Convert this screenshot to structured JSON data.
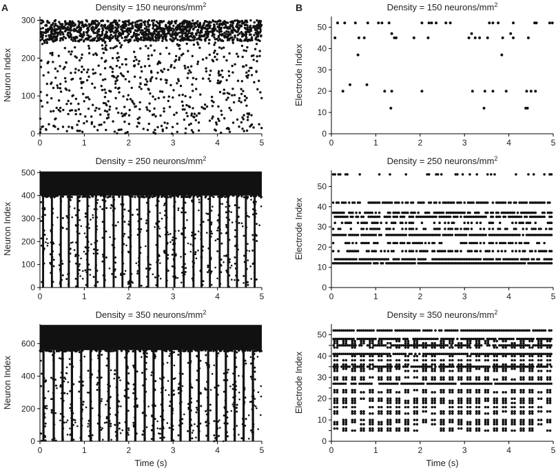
{
  "figure": {
    "panel_labels": [
      "A",
      "B"
    ],
    "background": "#ffffff",
    "dot_color": "#111111"
  },
  "chart_data": [
    {
      "type": "scatter",
      "panel": "A",
      "title": "Density = 150 neurons/mm",
      "title_sup": "2",
      "xlabel": "",
      "ylabel": "Neuron Index",
      "xlim": [
        0,
        5
      ],
      "ylim": [
        0,
        310
      ],
      "xticks": [
        0,
        1,
        2,
        3,
        4,
        5
      ],
      "yticks": [
        0,
        100,
        200,
        300
      ],
      "grid": false,
      "raster": {
        "total_units": 300,
        "dense_band": [
          245,
          300
        ],
        "dense_events": 1300,
        "sparse_events": 600,
        "synchrony": 0
      }
    },
    {
      "type": "scatter",
      "panel": "A",
      "title": "Density = 250 neurons/mm",
      "title_sup": "2",
      "xlabel": "",
      "ylabel": "Neuron Index",
      "xlim": [
        0,
        5
      ],
      "ylim": [
        0,
        510
      ],
      "xticks": [
        0,
        1,
        2,
        3,
        4,
        5
      ],
      "yticks": [
        0,
        100,
        200,
        300,
        400,
        500
      ],
      "grid": false,
      "raster": {
        "total_units": 500,
        "dense_band": [
          400,
          505
        ],
        "burst_times": [
          0.07,
          0.27,
          0.47,
          0.65,
          0.85,
          1.07,
          1.26,
          1.45,
          1.66,
          1.86,
          2.04,
          2.24,
          2.44,
          2.65,
          2.85,
          3.03,
          3.24,
          3.46,
          3.64,
          3.83,
          4.05,
          4.24,
          4.44,
          4.64,
          4.84
        ],
        "burst_width": 0.045
      }
    },
    {
      "type": "scatter",
      "panel": "A",
      "title": "Density = 350 neurons/mm",
      "title_sup": "2",
      "xlabel": "Time (s)",
      "ylabel": "Neuron Index",
      "xlim": [
        0,
        5
      ],
      "ylim": [
        0,
        720
      ],
      "xticks": [
        0,
        1,
        2,
        3,
        4,
        5
      ],
      "yticks": [
        0,
        200,
        400,
        600
      ],
      "grid": false,
      "raster": {
        "total_units": 700,
        "dense_band": [
          560,
          715
        ],
        "burst_times": [
          0.08,
          0.31,
          0.51,
          0.72,
          0.93,
          1.14,
          1.34,
          1.55,
          1.74,
          1.95,
          2.15,
          2.36,
          2.56,
          2.76,
          2.97,
          3.17,
          3.38,
          3.58,
          3.79,
          3.98,
          4.19,
          4.39,
          4.59,
          4.8
        ],
        "burst_width": 0.05
      }
    },
    {
      "type": "scatter",
      "panel": "B",
      "title": "Density = 150 neurons/mm",
      "title_sup": "2",
      "xlabel": "",
      "ylabel": "Electrode Index",
      "xlim": [
        0,
        5
      ],
      "ylim": [
        0,
        55
      ],
      "xticks": [
        0,
        1,
        2,
        3,
        4,
        5
      ],
      "yticks": [
        0,
        10,
        20,
        30,
        40,
        50
      ],
      "grid": false,
      "points": [
        [
          0.08,
          45
        ],
        [
          0.14,
          52
        ],
        [
          0.26,
          20
        ],
        [
          0.3,
          52
        ],
        [
          0.42,
          23
        ],
        [
          0.54,
          52
        ],
        [
          0.6,
          37
        ],
        [
          0.62,
          45
        ],
        [
          0.74,
          45
        ],
        [
          0.8,
          23
        ],
        [
          0.82,
          52
        ],
        [
          1.06,
          52
        ],
        [
          1.14,
          52
        ],
        [
          1.2,
          20
        ],
        [
          1.3,
          52
        ],
        [
          1.34,
          12
        ],
        [
          1.36,
          20
        ],
        [
          1.36,
          47
        ],
        [
          1.42,
          45
        ],
        [
          1.46,
          45
        ],
        [
          1.86,
          45
        ],
        [
          2.04,
          52
        ],
        [
          2.04,
          20
        ],
        [
          2.18,
          45
        ],
        [
          2.2,
          52
        ],
        [
          2.26,
          52
        ],
        [
          2.36,
          52
        ],
        [
          2.58,
          52
        ],
        [
          2.68,
          52
        ],
        [
          3.1,
          45
        ],
        [
          3.16,
          47
        ],
        [
          3.18,
          20
        ],
        [
          3.24,
          45
        ],
        [
          3.34,
          45
        ],
        [
          3.44,
          12
        ],
        [
          3.46,
          20
        ],
        [
          3.52,
          45
        ],
        [
          3.56,
          52
        ],
        [
          3.64,
          20
        ],
        [
          3.64,
          52
        ],
        [
          3.76,
          52
        ],
        [
          3.84,
          37
        ],
        [
          3.86,
          45
        ],
        [
          3.94,
          20
        ],
        [
          4.04,
          47
        ],
        [
          4.1,
          45
        ],
        [
          4.1,
          52
        ],
        [
          4.38,
          12
        ],
        [
          4.4,
          20
        ],
        [
          4.42,
          12
        ],
        [
          4.44,
          45
        ],
        [
          4.5,
          20
        ],
        [
          4.58,
          52
        ],
        [
          4.6,
          20
        ],
        [
          4.62,
          52
        ],
        [
          4.92,
          52
        ],
        [
          4.98,
          52
        ]
      ]
    },
    {
      "type": "scatter",
      "panel": "B",
      "title": "Density = 250 neurons/mm",
      "title_sup": "2",
      "xlabel": "",
      "ylabel": "Electrode Index",
      "xlim": [
        0,
        5
      ],
      "ylim": [
        0,
        58
      ],
      "xticks": [
        0,
        1,
        2,
        3,
        4,
        5
      ],
      "yticks": [
        0,
        10,
        20,
        30,
        40,
        50
      ],
      "grid": false,
      "raster": {
        "rows": [
          12,
          14,
          18,
          22,
          26,
          29,
          32,
          35,
          37,
          42,
          56
        ],
        "row_fill": [
          0.95,
          0.9,
          0.55,
          0.5,
          0.85,
          0.4,
          0.5,
          0.75,
          0.65,
          0.7,
          0.25
        ],
        "spike_step": 0.04
      }
    },
    {
      "type": "scatter",
      "panel": "B",
      "title": "Density = 350 neurons/mm",
      "title_sup": "2",
      "xlabel": "Time (s)",
      "ylabel": "Electrode Index",
      "xlim": [
        0,
        5
      ],
      "ylim": [
        0,
        55
      ],
      "xticks": [
        0,
        1,
        2,
        3,
        4,
        5
      ],
      "yticks": [
        0,
        5,
        10,
        15,
        20,
        25,
        30,
        35,
        40,
        45,
        50
      ],
      "ytick_labels": [
        "0",
        "",
        "10",
        "",
        "20",
        "",
        "30",
        "",
        "40",
        "",
        "50"
      ],
      "grid": false,
      "raster": {
        "rows": [
          5,
          6,
          8,
          9,
          10,
          13,
          14,
          16,
          18,
          19,
          20,
          23,
          24,
          27,
          29,
          30,
          33,
          34,
          35,
          36,
          38,
          40,
          41,
          44,
          45,
          46,
          47,
          48,
          52
        ],
        "continuous_rows": [
          27,
          35,
          41,
          45,
          48,
          52
        ],
        "burst_times": [
          0.1,
          0.3,
          0.5,
          0.7,
          0.9,
          1.1,
          1.3,
          1.5,
          1.7,
          1.9,
          2.1,
          2.3,
          2.5,
          2.7,
          2.9,
          3.1,
          3.3,
          3.5,
          3.7,
          3.9,
          4.1,
          4.3,
          4.5,
          4.7,
          4.9
        ]
      }
    }
  ]
}
